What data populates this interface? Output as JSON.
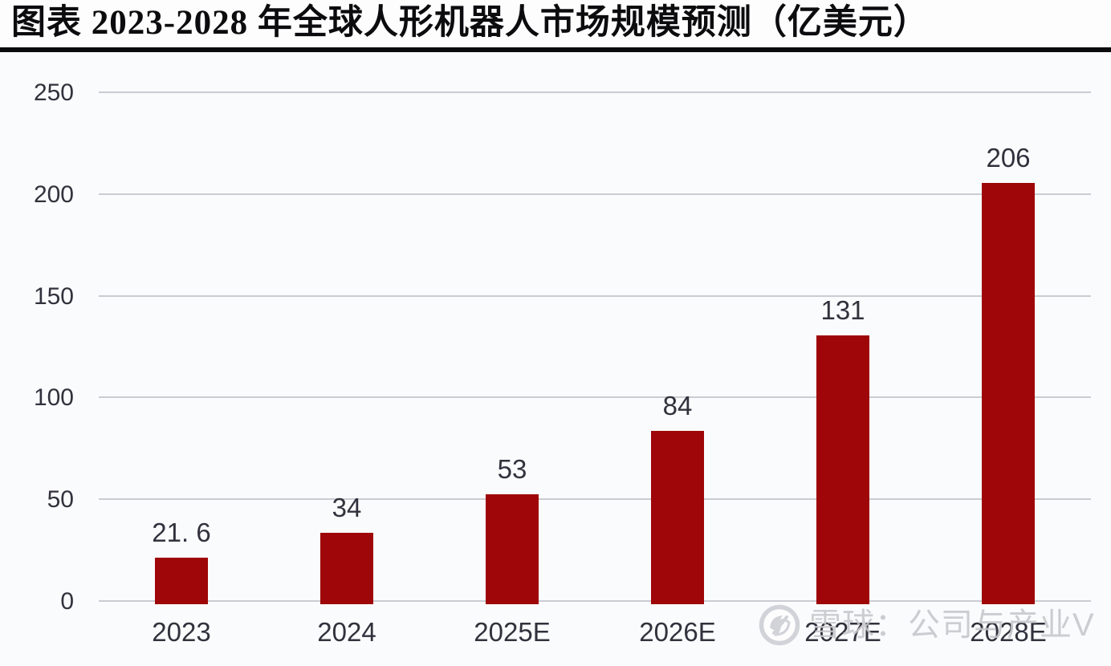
{
  "header": {
    "title": "图表  2023-2028 年全球人形机器人市场规模预测（亿美元）"
  },
  "chart_data": {
    "type": "bar",
    "title": "2023-2028 年全球人形机器人市场规模预测（亿美元）",
    "categories": [
      "2023",
      "2024",
      "2025E",
      "2026E",
      "2027E",
      "2028E"
    ],
    "values": [
      21.6,
      34,
      53,
      84,
      131,
      206
    ],
    "value_labels": [
      "21. 6",
      "34",
      "53",
      "84",
      "131",
      "206"
    ],
    "unit": "亿美元",
    "xlabel": "",
    "ylabel": "",
    "ylim": [
      0,
      250
    ],
    "yticks": [
      0,
      50,
      100,
      150,
      200,
      250
    ],
    "grid": "horizontal",
    "legend_position": "none",
    "bar_color": "#9e0609"
  },
  "watermark": {
    "logo": "xueqiu-logo-icon",
    "text": "雪球：公司与产业V"
  },
  "colors": {
    "bar": "#9e0609",
    "text_dark": "#32313c",
    "gridline": "#caccd2",
    "background": "#fafbfd",
    "title_text": "#0c0c0e",
    "title_rule": "#0b0b0d",
    "watermark": "#c6c6cb"
  }
}
